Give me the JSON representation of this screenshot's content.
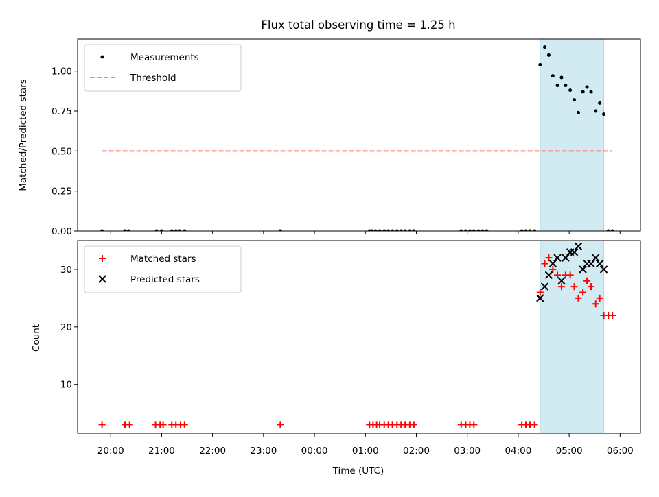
{
  "chart_data": {
    "type": "scatter",
    "title": "Flux total observing time = 1.25 h",
    "xlabel": "Time (UTC)",
    "x_ticks": [
      "20:00",
      "21:00",
      "22:00",
      "23:00",
      "00:00",
      "01:00",
      "02:00",
      "03:00",
      "04:00",
      "05:00",
      "06:00"
    ],
    "x_range_hours": [
      19.35,
      30.4
    ],
    "highlight_span_hours": [
      28.43,
      29.68
    ],
    "highlight_color": "#add8e6",
    "panels": [
      {
        "ylabel": "Matched/Predicted stars",
        "ylim": [
          0,
          1.2
        ],
        "y_ticks": [
          "0.00",
          "0.25",
          "0.50",
          "0.75",
          "1.00"
        ],
        "legend": "top-left",
        "series": [
          {
            "name": "Measurements",
            "marker": "dot",
            "color": "#000000",
            "x": [
              19.83,
              20.28,
              20.35,
              20.9,
              21.0,
              21.2,
              21.28,
              21.35,
              21.45,
              23.33,
              25.08,
              25.13,
              25.2,
              25.28,
              25.37,
              25.45,
              25.53,
              25.62,
              25.7,
              25.78,
              25.87,
              25.95,
              26.88,
              26.97,
              27.05,
              27.13,
              27.22,
              27.3,
              27.38,
              28.07,
              28.15,
              28.23,
              28.32,
              28.43,
              28.52,
              28.6,
              28.68,
              28.77,
              28.85,
              28.93,
              29.02,
              29.1,
              29.18,
              29.27,
              29.35,
              29.43,
              29.52,
              29.6,
              29.68,
              29.77,
              29.85
            ],
            "y": [
              0,
              0,
              0,
              0,
              0,
              0,
              0,
              0,
              0,
              0,
              0,
              0,
              0,
              0,
              0,
              0,
              0,
              0,
              0,
              0,
              0,
              0,
              0,
              0,
              0,
              0,
              0,
              0,
              0,
              0,
              0,
              0,
              0,
              1.04,
              1.15,
              1.1,
              0.97,
              0.91,
              0.96,
              0.91,
              0.88,
              0.82,
              0.74,
              0.87,
              0.9,
              0.87,
              0.75,
              0.8,
              0.73,
              0,
              0
            ]
          },
          {
            "name": "Threshold",
            "marker": "dashed-line",
            "color": "#ff7f7f",
            "x": [
              19.83,
              29.85
            ],
            "y": [
              0.5,
              0.5
            ]
          }
        ]
      },
      {
        "ylabel": "Count",
        "ylim": [
          1.5,
          35
        ],
        "y_ticks": [
          "10",
          "20",
          "30"
        ],
        "legend": "top-left",
        "series": [
          {
            "name": "Matched stars",
            "marker": "plus",
            "color": "#ff0000",
            "x": [
              19.83,
              20.28,
              20.37,
              20.88,
              20.97,
              21.03,
              21.2,
              21.28,
              21.37,
              21.45,
              23.33,
              25.08,
              25.15,
              25.22,
              25.28,
              25.37,
              25.45,
              25.53,
              25.62,
              25.7,
              25.78,
              25.87,
              25.95,
              26.88,
              26.97,
              27.05,
              27.13,
              28.07,
              28.15,
              28.23,
              28.32,
              28.43,
              28.52,
              28.6,
              28.68,
              28.77,
              28.85,
              28.93,
              29.02,
              29.1,
              29.18,
              29.27,
              29.35,
              29.43,
              29.52,
              29.6,
              29.68,
              29.77,
              29.85
            ],
            "y": [
              3,
              3,
              3,
              3,
              3,
              3,
              3,
              3,
              3,
              3,
              3,
              3,
              3,
              3,
              3,
              3,
              3,
              3,
              3,
              3,
              3,
              3,
              3,
              3,
              3,
              3,
              3,
              3,
              3,
              3,
              3,
              26,
              31,
              32,
              30,
              29,
              27,
              29,
              29,
              27,
              25,
              26,
              28,
              27,
              24,
              25,
              22,
              22,
              22
            ]
          },
          {
            "name": "Predicted stars",
            "marker": "x",
            "color": "#000000",
            "x": [
              28.43,
              28.52,
              28.6,
              28.68,
              28.77,
              28.85,
              28.93,
              29.02,
              29.1,
              29.18,
              29.27,
              29.35,
              29.43,
              29.52,
              29.6,
              29.68
            ],
            "y": [
              25,
              27,
              29,
              31,
              32,
              28,
              32,
              33,
              33,
              34,
              30,
              31,
              31,
              32,
              31,
              30
            ]
          }
        ]
      }
    ]
  }
}
